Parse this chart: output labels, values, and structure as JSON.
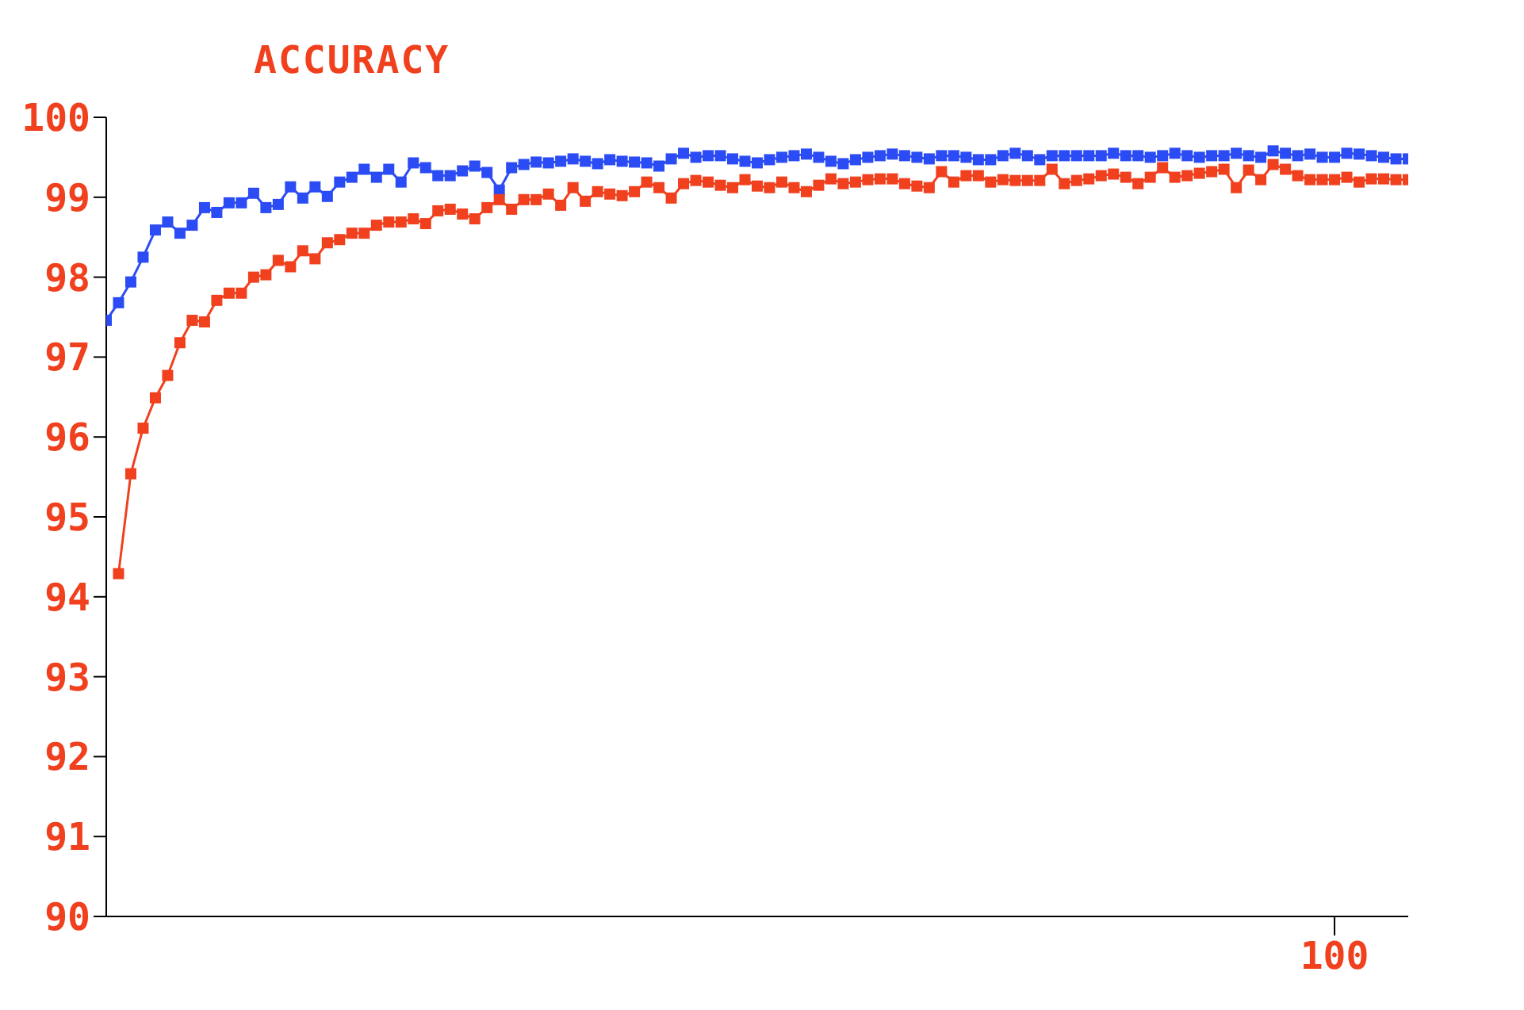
{
  "chart_data": {
    "type": "line",
    "title": "ACCURACY",
    "marker": "square",
    "grid": false,
    "legend": false,
    "ylim": [
      90,
      100
    ],
    "yticks": [
      90,
      91,
      92,
      93,
      94,
      95,
      96,
      97,
      98,
      99,
      100
    ],
    "categories": [
      null,
      null,
      null,
      null,
      null,
      null,
      null,
      null,
      null,
      null,
      null,
      null,
      null,
      null,
      null,
      null,
      null,
      null,
      null,
      null,
      null,
      null,
      null,
      null,
      null,
      null,
      null,
      null,
      null,
      null,
      null,
      null,
      null,
      null,
      null,
      null,
      null,
      null,
      null,
      null,
      null,
      null,
      null,
      null,
      null,
      null,
      null,
      null,
      null,
      null,
      null,
      null,
      null,
      null,
      null,
      null,
      null,
      null,
      null,
      null,
      null,
      null,
      null,
      null,
      null,
      null,
      null,
      null,
      null,
      null,
      null,
      null,
      null,
      null,
      null,
      null,
      null,
      null,
      null,
      null,
      null,
      null,
      null,
      null,
      null,
      null,
      null,
      null,
      null,
      null,
      null,
      null,
      null,
      null,
      null,
      null,
      null,
      null,
      null,
      null,
      "100",
      null,
      null,
      null,
      null,
      null,
      null
    ],
    "series": [
      {
        "color": "#2b4cf5",
        "values": [
          97.46,
          97.68,
          97.94,
          98.25,
          98.59,
          98.69,
          98.55,
          98.65,
          98.87,
          98.81,
          98.93,
          98.93,
          99.05,
          98.87,
          98.91,
          99.13,
          98.99,
          99.13,
          99.01,
          99.19,
          99.25,
          99.35,
          99.25,
          99.35,
          99.19,
          99.43,
          99.37,
          99.27,
          99.27,
          99.33,
          99.39,
          99.31,
          99.09,
          99.37,
          99.41,
          99.44,
          99.43,
          99.45,
          99.48,
          99.45,
          99.42,
          99.47,
          99.45,
          99.44,
          99.43,
          99.39,
          99.48,
          99.55,
          99.5,
          99.52,
          99.52,
          99.48,
          99.45,
          99.43,
          99.47,
          99.5,
          99.52,
          99.54,
          99.5,
          99.45,
          99.42,
          99.47,
          99.5,
          99.52,
          99.54,
          99.52,
          99.5,
          99.48,
          99.52,
          99.52,
          99.5,
          99.47,
          99.47,
          99.52,
          99.55,
          99.52,
          99.47,
          99.52,
          99.52,
          99.52,
          99.52,
          99.52,
          99.55,
          99.52,
          99.52,
          99.5,
          99.52,
          99.55,
          99.52,
          99.5,
          99.52,
          99.52,
          99.55,
          99.52,
          99.5,
          99.58,
          99.55,
          99.52,
          99.54,
          99.5,
          99.5,
          99.55,
          99.54,
          99.52,
          99.5,
          99.48,
          99.48
        ]
      },
      {
        "color": "#f0401e",
        "values": [
          null,
          94.29,
          95.54,
          96.11,
          96.49,
          96.77,
          97.18,
          97.46,
          97.44,
          97.71,
          97.8,
          97.8,
          98.0,
          98.03,
          98.21,
          98.13,
          98.33,
          98.23,
          98.43,
          98.47,
          98.55,
          98.55,
          98.65,
          98.69,
          98.69,
          98.73,
          98.67,
          98.83,
          98.85,
          98.79,
          98.73,
          98.87,
          98.97,
          98.85,
          98.97,
          98.97,
          99.04,
          98.9,
          99.12,
          98.95,
          99.07,
          99.04,
          99.02,
          99.07,
          99.19,
          99.12,
          98.99,
          99.17,
          99.21,
          99.19,
          99.15,
          99.12,
          99.22,
          99.14,
          99.12,
          99.19,
          99.12,
          99.07,
          99.15,
          99.23,
          99.17,
          99.19,
          99.22,
          99.23,
          99.23,
          99.17,
          99.14,
          99.12,
          99.32,
          99.19,
          99.27,
          99.27,
          99.19,
          99.22,
          99.21,
          99.21,
          99.21,
          99.35,
          99.17,
          99.21,
          99.23,
          99.27,
          99.29,
          99.25,
          99.17,
          99.25,
          99.37,
          99.25,
          99.27,
          99.3,
          99.32,
          99.35,
          99.12,
          99.34,
          99.22,
          99.41,
          99.35,
          99.27,
          99.22,
          99.22,
          99.22,
          99.25,
          99.19,
          99.23,
          99.23,
          99.22,
          99.22
        ]
      }
    ]
  }
}
